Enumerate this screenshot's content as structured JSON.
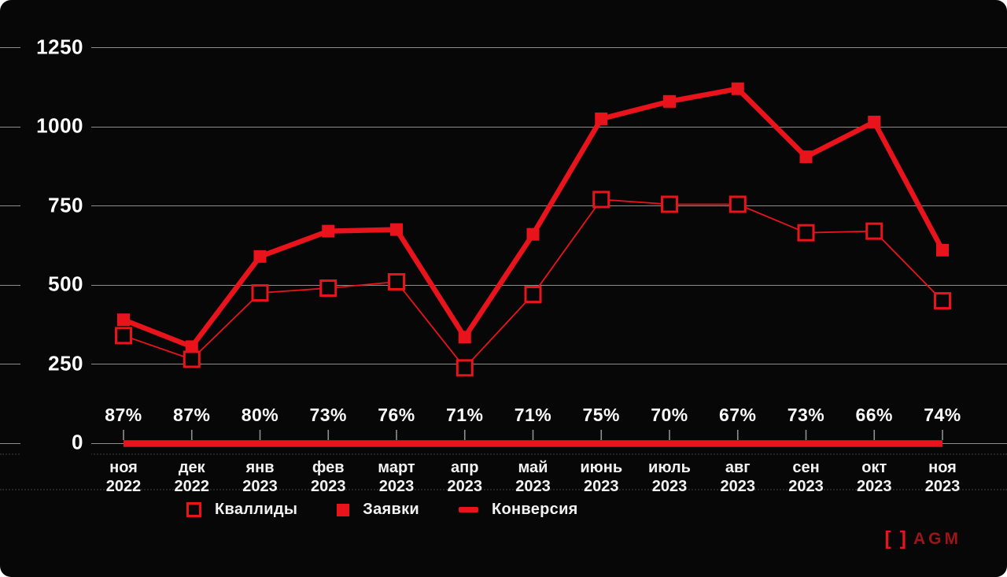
{
  "colors": {
    "background": "#070707",
    "accent": "#e8131b",
    "gridline": "#8d8d8d",
    "text": "#f5f5f5",
    "logo_text": "#9c1619"
  },
  "chart_data": {
    "type": "line",
    "title": "",
    "xlabel": "",
    "ylabel": "",
    "ylim": [
      0,
      1250
    ],
    "yticks": [
      0,
      250,
      500,
      750,
      1000,
      1250
    ],
    "grid": "horizontal",
    "legend_position": "bottom-left",
    "categories": [
      "ноя 2022",
      "дек 2022",
      "янв 2023",
      "фев 2023",
      "март 2023",
      "апр 2023",
      "май 2023",
      "июнь 2023",
      "июль 2023",
      "авг 2023",
      "сен 2023",
      "окт 2023",
      "ноя 2023"
    ],
    "series": [
      {
        "name": "Заявки",
        "marker": "filled-square",
        "color": "#e8131b",
        "values": [
          390,
          305,
          590,
          670,
          675,
          335,
          660,
          1025,
          1080,
          1120,
          905,
          1015,
          610
        ]
      },
      {
        "name": "Кваллиды",
        "marker": "open-square",
        "color": "#e8131b",
        "values": [
          340,
          265,
          475,
          490,
          510,
          238,
          470,
          770,
          755,
          755,
          665,
          670,
          450
        ]
      },
      {
        "name": "Конверсия",
        "marker": "thick-line",
        "color": "#e8131b",
        "unit": "%",
        "values": [
          87,
          87,
          80,
          73,
          76,
          71,
          71,
          75,
          70,
          67,
          73,
          66,
          74
        ]
      }
    ]
  },
  "legend": {
    "items": [
      {
        "label": "Кваллиды",
        "marker": "open-square"
      },
      {
        "label": "Заявки",
        "marker": "filled-square"
      },
      {
        "label": "Конверсия",
        "marker": "thick-line"
      }
    ]
  },
  "logo": {
    "brackets": "[ ]",
    "name": "AGM"
  }
}
